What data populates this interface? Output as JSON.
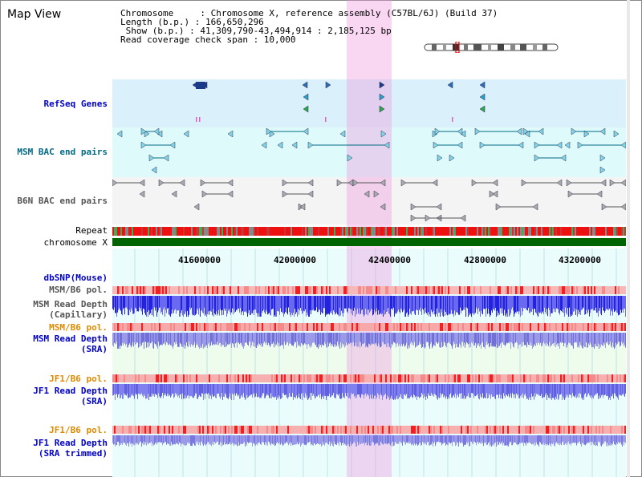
{
  "window": {
    "title": "Map View"
  },
  "info": {
    "chromosome_line": "Chromosome     : Chromosome X, reference assembly (C57BL/6J) (Build 37)",
    "length_line": "Length (b.p.) : 166,650,296",
    "show_line": " Show (b.p.) : 41,309,790-43,494,914 : 2,185,125 bp",
    "coverage_line": "Read coverage check span : 10,000"
  },
  "tracks": {
    "refseq": "RefSeq Genes",
    "msm_bac": "MSM BAC end pairs",
    "b6n_bac": "B6N BAC end pairs",
    "repeat": "Repeat",
    "chromosome": "chromosome X",
    "dbsnp": "dbSNP(Mouse)",
    "msm_b6_pol_1": "MSM/B6 pol.",
    "msm_depth_cap_1": "MSM Read Depth",
    "msm_depth_cap_2": "(Capillary)",
    "msm_b6_pol_2": "MSM/B6 pol.",
    "msm_depth_sra_1": "MSM Read Depth",
    "msm_depth_sra_2": "(SRA)",
    "jf1_b6_pol_1": "JF1/B6 pol.",
    "jf1_depth_sra_1": "JF1 Read Depth",
    "jf1_depth_sra_2": "(SRA)",
    "jf1_b6_pol_2": "JF1/B6 pol.",
    "jf1_depth_trim_1": "JF1 Read Depth",
    "jf1_depth_trim_2": "(SRA trimmed)"
  },
  "axis": {
    "ticks": [
      "41600000",
      "42000000",
      "42400000",
      "42800000",
      "43200000"
    ]
  },
  "colors": {
    "refseq_bg": "#daf0fb",
    "msm_bac_bg": "#dffafa",
    "b6n_bg": "#f4f4f4",
    "lower_bg": "#e8fefe",
    "highlight": "#f6c4ea",
    "label_blue": "#0000cc",
    "label_teal": "#006b84",
    "label_gray": "#555555",
    "label_orange": "#e08a00"
  }
}
